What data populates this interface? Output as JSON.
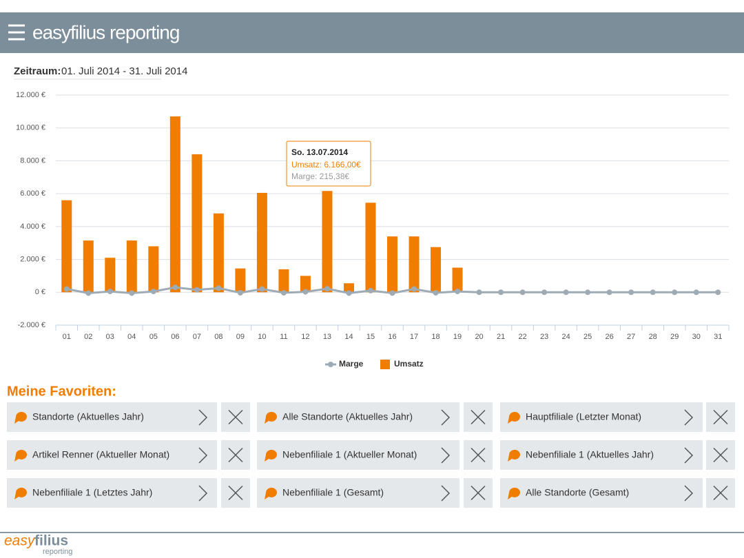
{
  "header": {
    "title": "easyfilius reporting"
  },
  "period": {
    "label": "Zeitraum:",
    "value": "01. Juli 2014 - 31. Juli 2014"
  },
  "chart_data": {
    "type": "bar",
    "categories": [
      "01",
      "02",
      "03",
      "04",
      "05",
      "06",
      "07",
      "08",
      "09",
      "10",
      "11",
      "12",
      "13",
      "14",
      "15",
      "16",
      "17",
      "18",
      "19",
      "20",
      "21",
      "22",
      "23",
      "24",
      "25",
      "26",
      "27",
      "28",
      "29",
      "30",
      "31"
    ],
    "series": [
      {
        "name": "Marge",
        "type": "line",
        "color": "#9eabb5",
        "values": [
          200,
          -50,
          50,
          -50,
          50,
          300,
          150,
          250,
          -30,
          200,
          -30,
          30,
          215.38,
          -50,
          100,
          -50,
          200,
          -30,
          50,
          0,
          0,
          0,
          0,
          0,
          0,
          0,
          0,
          0,
          0,
          0,
          0
        ]
      },
      {
        "name": "Umsatz",
        "type": "bar",
        "color": "#f07d00",
        "values": [
          5600,
          3150,
          2100,
          3150,
          2800,
          10700,
          8400,
          4800,
          1450,
          6050,
          1400,
          1000,
          6166,
          550,
          5450,
          3400,
          3400,
          2750,
          1500,
          0,
          0,
          0,
          0,
          0,
          0,
          0,
          0,
          0,
          0,
          0,
          0
        ]
      }
    ],
    "ylim": [
      -2000,
      12000
    ],
    "yticks": [
      {
        "value": -2000,
        "label": "-2.000 €"
      },
      {
        "value": 0,
        "label": "0 €"
      },
      {
        "value": 2000,
        "label": "2.000 €"
      },
      {
        "value": 4000,
        "label": "4.000 €"
      },
      {
        "value": 6000,
        "label": "6.000 €"
      },
      {
        "value": 8000,
        "label": "8.000 €"
      },
      {
        "value": 10000,
        "label": "10.000 €"
      },
      {
        "value": 12000,
        "label": "12.000 €"
      }
    ],
    "grid": true,
    "legend": "bottom",
    "tooltip": {
      "title": "So. 13.07.2014",
      "umsatz": "Umsatz: 6.166,00€",
      "marge": "Marge: 215,38€"
    }
  },
  "favorites": {
    "title": "Meine Favoriten:",
    "items": [
      "Standorte (Aktuelles Jahr)",
      "Alle Standorte (Aktuelles Jahr)",
      "Hauptfiliale (Letzter Monat)",
      "Artikel Renner (Aktueller Monat)",
      "Nebenfiliale 1 (Aktueller Monat)",
      "Nebenfiliale 1 (Aktuelles Jahr)",
      "Nebenfiliale 1 (Letztes Jahr)",
      "Nebenfiliale 1 (Gesamt)",
      "Alle Standorte (Gesamt)"
    ]
  },
  "footer": {
    "logo_easy": "easy",
    "logo_filius": "filius",
    "logo_sub": "reporting"
  }
}
